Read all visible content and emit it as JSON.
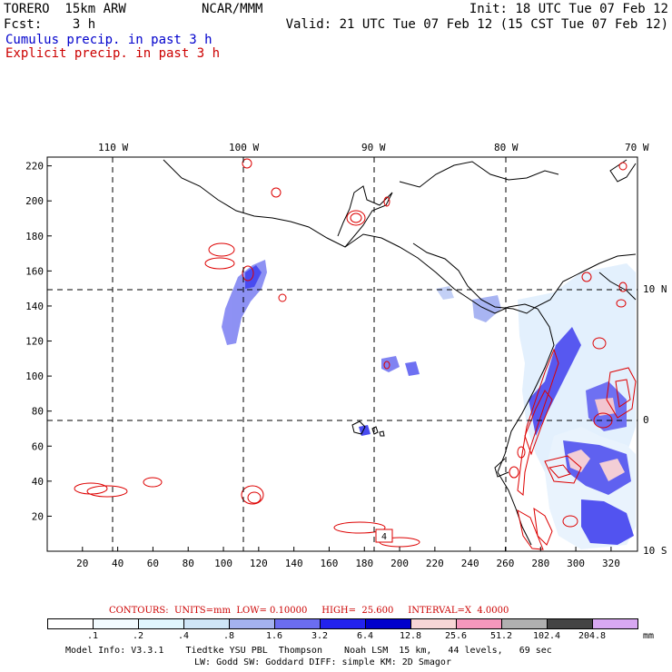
{
  "header": {
    "model": "TORERO  15km ARW",
    "center": "NCAR/MMM",
    "init": "Init: 18 UTC Tue 07 Feb 12",
    "fcst": "Fcst:    3 h",
    "valid": "Valid: 21 UTC Tue 07 Feb 12 (15 CST Tue 07 Feb 12)",
    "cumulus": "Cumulus precip. in past 3 h",
    "explicit": "Explicit precip. in past 3 h"
  },
  "colors": {
    "cumulus_title": "#0000cc",
    "explicit_title": "#cc0000",
    "contour": "#dd0000"
  },
  "contour_info": {
    "label": "CONTOURS:  UNITS=mm  LOW= 0.10000     HIGH=  25.600     INTERVAL=X  4.0000"
  },
  "colorbar": {
    "ticks": [
      ".1",
      ".2",
      ".4",
      ".8",
      "1.6",
      "3.2",
      "6.4",
      "12.8",
      "25.6",
      "51.2",
      "102.4",
      "204.8"
    ],
    "colors": [
      "#ffffff",
      "#f2fbff",
      "#e0f6fd",
      "#cfe6f7",
      "#a4b2ef",
      "#6b6df0",
      "#2222ee",
      "#0000cc",
      "#f7d6d6",
      "#f597bd",
      "#b0b0b0",
      "#444444",
      "#d8a8f2"
    ],
    "unit": "mm"
  },
  "footer": {
    "line1": "Model Info: V3.3.1    Tiedtke YSU PBL  Thompson    Noah LSM  15 km,   44 levels,   69 sec",
    "line2": "LW: Godd SW: Goddard DIFF: simple KM: 2D Smagor"
  },
  "chart_data": {
    "type": "map",
    "x_grid": {
      "range": [
        0,
        335
      ],
      "ticks": [
        20,
        40,
        60,
        80,
        100,
        120,
        140,
        160,
        180,
        200,
        220,
        240,
        260,
        280,
        300,
        320
      ]
    },
    "y_grid": {
      "range": [
        0,
        225
      ],
      "ticks": [
        20,
        40,
        60,
        80,
        100,
        120,
        140,
        160,
        180,
        200,
        220
      ]
    },
    "longitude_labels": [
      "110 W",
      "100 W",
      "90 W",
      "80 W",
      "70 W"
    ],
    "latitude_labels": [
      "10 N",
      "0",
      "10 S"
    ],
    "contour_label": "4",
    "legend": [
      "Cumulus precip. in past 3 h",
      "Explicit precip. in past 3 h"
    ]
  }
}
